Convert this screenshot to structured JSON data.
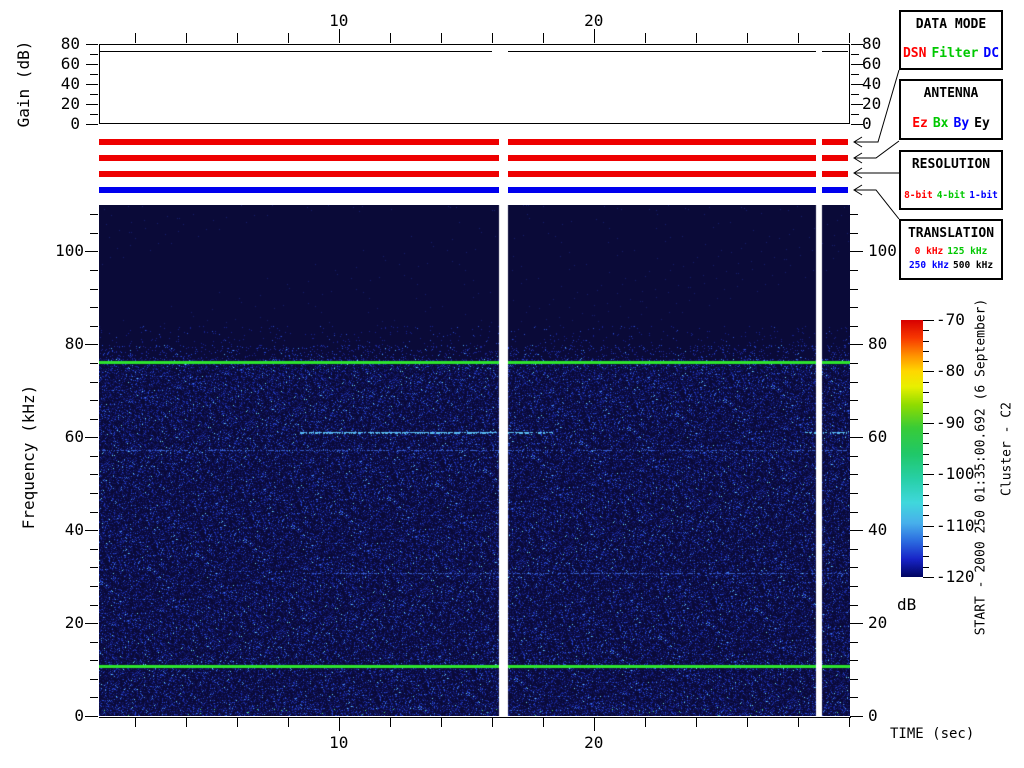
{
  "chart_data": [
    {
      "id": "gain_panel",
      "type": "line",
      "ylabel": "Gain (dB)",
      "ylim": [
        0,
        80
      ],
      "y_major_ticks": [
        0,
        20,
        40,
        60,
        80
      ],
      "y_minor_step": 10,
      "xlim": [
        0.6,
        30.05
      ],
      "x_major_ticks": [
        10,
        20
      ],
      "x_minor_step": 2,
      "gain_db": 73,
      "segments_sec": [
        [
          0.6,
          16.0
        ],
        [
          16.65,
          28.7
        ],
        [
          28.95,
          29.97
        ]
      ]
    },
    {
      "id": "spectrogram",
      "type": "heatmap",
      "xlabel": "TIME (sec)",
      "ylabel": "Frequency (kHz)",
      "xlim": [
        0.6,
        30.05
      ],
      "x_major_ticks": [
        10,
        20
      ],
      "x_minor_step": 2,
      "ylim": [
        0,
        110
      ],
      "y_major_ticks": [
        0,
        20,
        40,
        60,
        80,
        100
      ],
      "y_minor_step": 4,
      "features": {
        "broadband_noise_khz": [
          0,
          77
        ],
        "sparse_noise_khz": [
          77,
          84
        ],
        "tone_lines_khz": [
          76.3,
          10.8
        ],
        "narrowband_lines": [
          {
            "khz": 61.2,
            "segments_sec": [
              [
                8.5,
                18.4
              ],
              [
                28.3,
                29.97
              ]
            ],
            "strength": "bright"
          },
          {
            "khz": 57.3,
            "segments_sec": [
              [
                0.6,
                29.97
              ]
            ],
            "strength": "faint"
          },
          {
            "khz": 30.8,
            "segments_sec": [
              [
                8.5,
                29.97
              ]
            ],
            "strength": "faint"
          }
        ],
        "data_gaps_sec": [
          [
            16.3,
            16.65
          ],
          [
            28.72,
            28.95
          ]
        ]
      },
      "colors": {
        "background": "#0a0a38",
        "tone_line": "#2ee32e",
        "gap": "#ffffff"
      },
      "colorbar": {
        "label": "dB",
        "max": -70,
        "min": -120,
        "major_step": 10,
        "minor_step": 2,
        "tick_labels": [
          "-70",
          "-80",
          "-90",
          "-100",
          "-110",
          "-120"
        ],
        "gradient_stops": [
          [
            0,
            "#d80000"
          ],
          [
            0.07,
            "#f83800"
          ],
          [
            0.14,
            "#ff9400"
          ],
          [
            0.2,
            "#ffd800"
          ],
          [
            0.26,
            "#e8f000"
          ],
          [
            0.33,
            "#90dc00"
          ],
          [
            0.42,
            "#38cc38"
          ],
          [
            0.52,
            "#20c868"
          ],
          [
            0.62,
            "#28d0a8"
          ],
          [
            0.71,
            "#40d8dc"
          ],
          [
            0.79,
            "#48b0ec"
          ],
          [
            0.86,
            "#2c6ce0"
          ],
          [
            0.93,
            "#1824c8"
          ],
          [
            1,
            "#000460"
          ]
        ]
      }
    }
  ],
  "status_bars": [
    {
      "name": "data-mode",
      "color": "#ee0000"
    },
    {
      "name": "antenna",
      "color": "#ee0000"
    },
    {
      "name": "resolution",
      "color": "#ee0000"
    },
    {
      "name": "translation",
      "color": "#0000ee"
    }
  ],
  "annotations": {
    "legend_boxes": [
      {
        "title": "DATA MODE",
        "items": [
          {
            "label": "DSN",
            "color": "#ff0000"
          },
          {
            "label": "Filter",
            "color": "#00c800"
          },
          {
            "label": "DC",
            "color": "#0000ff"
          }
        ]
      },
      {
        "title": "ANTENNA",
        "items": [
          {
            "label": "Ez",
            "color": "#ff0000"
          },
          {
            "label": "Bx",
            "color": "#00c800"
          },
          {
            "label": "By",
            "color": "#0000ff"
          },
          {
            "label": "Ey",
            "color": "#000000"
          }
        ]
      },
      {
        "title": "RESOLUTION",
        "items": [
          {
            "label": "8-bit",
            "color": "#ff0000"
          },
          {
            "label": "4-bit",
            "color": "#00c800"
          },
          {
            "label": "1-bit",
            "color": "#0000ff"
          }
        ]
      },
      {
        "title": "TRANSLATION",
        "rows": [
          [
            {
              "label": "0 kHz",
              "color": "#ff0000"
            },
            {
              "label": "125 kHz",
              "color": "#00c800"
            }
          ],
          [
            {
              "label": "250 kHz",
              "color": "#0000ff"
            },
            {
              "label": "500 kHz",
              "color": "#000000"
            }
          ]
        ]
      }
    ],
    "start_label": "START - 2000 250 01:35:00.692 (6 September)",
    "mission_label": "Cluster - C2"
  }
}
